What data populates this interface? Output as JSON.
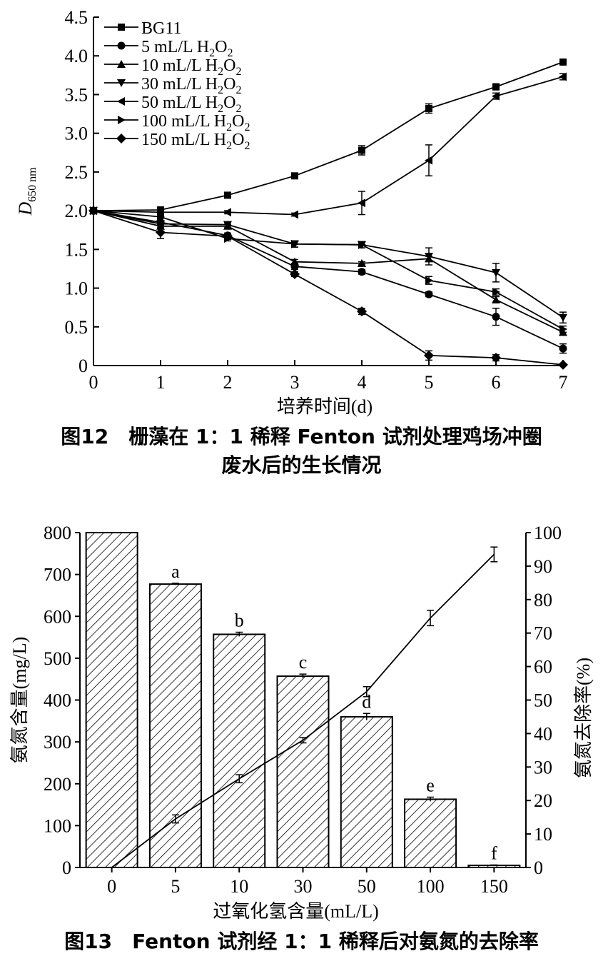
{
  "chart_data": [
    {
      "type": "line",
      "x": [
        0,
        1,
        2,
        3,
        4,
        5,
        6,
        7
      ],
      "xlim": [
        0,
        7
      ],
      "ylim": [
        0,
        4.5
      ],
      "xticks": [
        "0",
        "1",
        "2",
        "3",
        "4",
        "5",
        "6",
        "7"
      ],
      "yticks": [
        "0",
        "0.5",
        "1.0",
        "1.5",
        "2.0",
        "2.5",
        "3.0",
        "3.5",
        "4.0",
        "4.5"
      ],
      "xlabel": "培养时间(d)",
      "ylabel_main": "D",
      "ylabel_sub": "650 nm",
      "legend_position": "top-left",
      "series": [
        {
          "name": "BG11",
          "marker": "square",
          "values": [
            2.0,
            2.01,
            2.2,
            2.45,
            2.78,
            3.32,
            3.6,
            3.92
          ],
          "errors": [
            0,
            0,
            0.02,
            0.02,
            0.06,
            0.06,
            0.04,
            0.02
          ]
        },
        {
          "name": "5 mL/L  H2O2",
          "marker": "circle",
          "values": [
            2.0,
            1.85,
            1.68,
            1.28,
            1.21,
            0.92,
            0.63,
            0.22
          ],
          "errors": [
            0,
            0.02,
            0.03,
            0.04,
            0.03,
            0.03,
            0.11,
            0.06
          ]
        },
        {
          "name": "10 mL/L H2O2",
          "marker": "triangle-up",
          "values": [
            2.0,
            1.8,
            1.8,
            1.34,
            1.32,
            1.38,
            0.85,
            0.43
          ],
          "errors": [
            0,
            0.02,
            0.02,
            0.03,
            0.02,
            0.03,
            0.04,
            0.04
          ]
        },
        {
          "name": "30 mL/L H2O2",
          "marker": "triangle-down",
          "values": [
            2.0,
            1.83,
            1.82,
            1.57,
            1.56,
            1.41,
            1.2,
            0.62
          ],
          "errors": [
            0,
            0.02,
            0.02,
            0.04,
            0.04,
            0.11,
            0.12,
            0.07
          ]
        },
        {
          "name": "50 mL/L H2O2",
          "marker": "triangle-left",
          "values": [
            2.0,
            1.98,
            1.98,
            1.95,
            2.1,
            2.65,
            3.48,
            3.73
          ],
          "errors": [
            0,
            0.02,
            0.02,
            0.02,
            0.15,
            0.2,
            0.04,
            0.04
          ]
        },
        {
          "name": "100 mL/L H2O2",
          "marker": "triangle-right",
          "values": [
            2.0,
            1.92,
            1.64,
            1.57,
            1.56,
            1.1,
            0.95,
            0.47
          ],
          "errors": [
            0,
            0.02,
            0.03,
            0.04,
            0.04,
            0.05,
            0.04,
            0.04
          ]
        },
        {
          "name": "150 mL/L H2O2",
          "marker": "diamond",
          "values": [
            2.0,
            1.72,
            1.67,
            1.18,
            0.7,
            0.13,
            0.1,
            0.01
          ],
          "errors": [
            0,
            0.08,
            0.04,
            0.03,
            0.04,
            0.06,
            0.04,
            0
          ]
        }
      ]
    },
    {
      "type": "bar",
      "categories": [
        "0",
        "5",
        "10",
        "30",
        "50",
        "100",
        "150"
      ],
      "xlabel": "过氧化氢含量(mL/L)",
      "ylabel": "氨氮含量(mg/L)",
      "y2label": "氨氮去除率(%)",
      "ylim": [
        0,
        800
      ],
      "y2lim": [
        0,
        100
      ],
      "yticks": [
        "0",
        "100",
        "200",
        "300",
        "400",
        "500",
        "600",
        "700",
        "800"
      ],
      "y2ticks": [
        "0",
        "10",
        "20",
        "30",
        "40",
        "50",
        "60",
        "70",
        "80",
        "90",
        "100"
      ],
      "bar_values": [
        800,
        677,
        557,
        457,
        360,
        163,
        5
      ],
      "bar_errors": [
        0,
        2,
        5,
        5,
        8,
        5,
        1
      ],
      "bar_labels": [
        "",
        "a",
        "b",
        "c",
        "d",
        "e",
        "f"
      ],
      "line_values": [
        0,
        14.5,
        26.5,
        38,
        52.5,
        74.5,
        93.5
      ],
      "line_errors": [
        0,
        1.2,
        1.2,
        0.8,
        1.5,
        2.3,
        2.2
      ]
    }
  ],
  "captions": {
    "fig12_line1": "图12　栅藻在 1：1 稀释 Fenton 试剂处理鸡场冲圈",
    "fig12_line2": "废水后的生长情况",
    "fig13": "图13　Fenton 试剂经 1：1 稀释后对氨氮的去除率"
  }
}
